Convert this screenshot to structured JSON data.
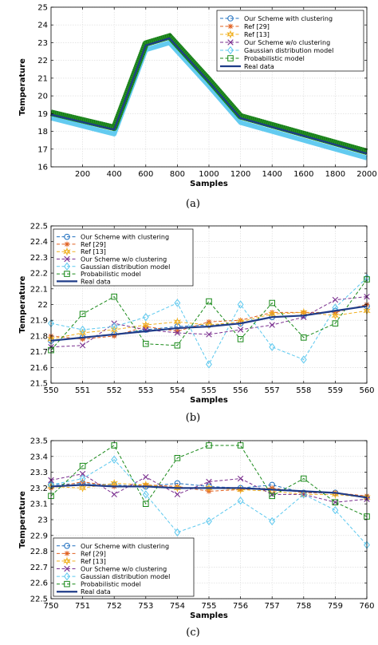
{
  "chart_data": [
    {
      "type": "line",
      "caption": "(a)",
      "xlabel": "Samples",
      "ylabel": "Temperature",
      "xlim": [
        0,
        2000
      ],
      "ylim": [
        16,
        25
      ],
      "xticks": [
        200,
        400,
        600,
        800,
        1000,
        1200,
        1400,
        1600,
        1800,
        2000
      ],
      "yticks": [
        16,
        17,
        18,
        19,
        20,
        21,
        22,
        23,
        24,
        25
      ],
      "grid": true,
      "legend_position": "top-right",
      "series": [
        {
          "name": "Our Scheme with clustering",
          "color": "#1f6fbf",
          "marker": "circle",
          "x": [
            0,
            400,
            600,
            750,
            1000,
            1200,
            2000
          ],
          "y": [
            18.95,
            18.1,
            22.85,
            23.25,
            20.8,
            18.75,
            16.75
          ]
        },
        {
          "name": "Ref [29]",
          "color": "#e06020",
          "marker": "star",
          "x": [
            0,
            400,
            600,
            750,
            1000,
            1200,
            2000
          ],
          "y": [
            18.95,
            18.1,
            22.85,
            23.25,
            20.8,
            18.75,
            16.75
          ]
        },
        {
          "name": "Ref [13]",
          "color": "#f0b020",
          "marker": "hexagram",
          "x": [
            0,
            400,
            600,
            750,
            1000,
            1200,
            2000
          ],
          "y": [
            18.95,
            18.1,
            22.85,
            23.25,
            20.8,
            18.75,
            16.75
          ]
        },
        {
          "name": "Our Scheme w/o clustering",
          "color": "#7a2f8f",
          "marker": "x",
          "x": [
            0,
            400,
            600,
            750,
            1000,
            1200,
            2000
          ],
          "y": [
            18.95,
            18.1,
            22.85,
            23.25,
            20.8,
            18.75,
            16.75
          ]
        },
        {
          "name": "Gaussian distribution model",
          "color": "#5bc8ef",
          "marker": "diamond",
          "x": [
            0,
            400,
            600,
            750,
            1000,
            1200,
            2000
          ],
          "y": [
            18.75,
            17.85,
            22.6,
            23.0,
            20.55,
            18.5,
            16.5
          ]
        },
        {
          "name": "Probabilistic model",
          "color": "#1a8a1a",
          "marker": "square",
          "x": [
            0,
            400,
            600,
            750,
            1000,
            1200,
            2000
          ],
          "y": [
            19.05,
            18.2,
            22.95,
            23.35,
            20.9,
            18.85,
            16.85
          ]
        },
        {
          "name": "Real data",
          "color": "#1f3c88",
          "marker": "none",
          "x": [
            0,
            400,
            600,
            750,
            1000,
            1200,
            2000
          ],
          "y": [
            18.95,
            18.1,
            22.85,
            23.25,
            20.8,
            18.75,
            16.75
          ]
        }
      ]
    },
    {
      "type": "line",
      "caption": "(b)",
      "xlabel": "Samples",
      "ylabel": "Temperature",
      "xlim": [
        550,
        560
      ],
      "ylim": [
        21.5,
        22.5
      ],
      "xticks": [
        550,
        551,
        552,
        553,
        554,
        555,
        556,
        557,
        558,
        559,
        560
      ],
      "yticks": [
        21.5,
        21.6,
        21.7,
        21.8,
        21.9,
        22,
        22.1,
        22.2,
        22.3,
        22.4,
        22.5
      ],
      "grid": true,
      "legend_position": "top-left",
      "x": [
        550,
        551,
        552,
        553,
        554,
        555,
        556,
        557,
        558,
        559,
        560
      ],
      "series": [
        {
          "name": "Our Scheme with clustering",
          "color": "#1f6fbf",
          "marker": "circle",
          "values": [
            21.77,
            21.79,
            21.81,
            21.84,
            21.86,
            21.87,
            21.88,
            21.92,
            21.93,
            21.96,
            21.99
          ]
        },
        {
          "name": "Ref [29]",
          "color": "#e06020",
          "marker": "star",
          "values": [
            21.8,
            21.78,
            21.8,
            21.86,
            21.83,
            21.89,
            21.9,
            21.95,
            21.95,
            21.95,
            22.0
          ]
        },
        {
          "name": "Ref [13]",
          "color": "#f0b020",
          "marker": "hexagram",
          "values": [
            21.78,
            21.82,
            21.84,
            21.87,
            21.89,
            21.87,
            21.89,
            21.94,
            21.95,
            21.93,
            21.96
          ]
        },
        {
          "name": "Our Scheme w/o clustering",
          "color": "#7a2f8f",
          "marker": "x",
          "values": [
            21.73,
            21.74,
            21.88,
            21.84,
            21.82,
            21.81,
            21.84,
            21.87,
            21.92,
            22.03,
            22.05
          ]
        },
        {
          "name": "Gaussian distribution model",
          "color": "#5bc8ef",
          "marker": "diamond",
          "values": [
            21.88,
            21.84,
            21.86,
            21.92,
            22.01,
            21.62,
            22.0,
            21.73,
            21.65,
            21.98,
            22.17
          ]
        },
        {
          "name": "Probabilistic model",
          "color": "#1a8a1a",
          "marker": "square",
          "values": [
            21.71,
            21.94,
            22.05,
            21.75,
            21.74,
            22.02,
            21.78,
            22.01,
            21.79,
            21.88,
            22.16
          ]
        },
        {
          "name": "Real data",
          "color": "#1f3c88",
          "marker": "none",
          "values": [
            21.77,
            21.79,
            21.81,
            21.83,
            21.85,
            21.86,
            21.88,
            21.92,
            21.93,
            21.96,
            21.99
          ]
        }
      ]
    },
    {
      "type": "line",
      "caption": "(c)",
      "xlabel": "Samples",
      "ylabel": "Temperature",
      "xlim": [
        750,
        760
      ],
      "ylim": [
        22.5,
        23.5
      ],
      "xticks": [
        750,
        751,
        752,
        753,
        754,
        755,
        756,
        757,
        758,
        759,
        760
      ],
      "yticks": [
        22.5,
        22.6,
        22.7,
        22.8,
        22.9,
        23,
        23.1,
        23.2,
        23.3,
        23.4,
        23.5
      ],
      "grid": true,
      "legend_position": "bottom-left",
      "x": [
        750,
        751,
        752,
        753,
        754,
        755,
        756,
        757,
        758,
        759,
        760
      ],
      "series": [
        {
          "name": "Our Scheme with clustering",
          "color": "#1f6fbf",
          "marker": "circle",
          "values": [
            23.22,
            23.23,
            23.22,
            23.21,
            23.23,
            23.21,
            23.2,
            23.22,
            23.17,
            23.17,
            23.14
          ]
        },
        {
          "name": "Ref [29]",
          "color": "#e06020",
          "marker": "star",
          "values": [
            23.2,
            23.24,
            23.21,
            23.22,
            23.21,
            23.18,
            23.19,
            23.2,
            23.17,
            23.17,
            23.15
          ]
        },
        {
          "name": "Ref [13]",
          "color": "#f0b020",
          "marker": "hexagram",
          "values": [
            23.21,
            23.2,
            23.23,
            23.22,
            23.2,
            23.2,
            23.19,
            23.18,
            23.16,
            23.16,
            23.14
          ]
        },
        {
          "name": "Our Scheme w/o clustering",
          "color": "#7a2f8f",
          "marker": "x",
          "values": [
            23.25,
            23.29,
            23.16,
            23.27,
            23.16,
            23.24,
            23.26,
            23.16,
            23.16,
            23.11,
            23.13
          ]
        },
        {
          "name": "Gaussian distribution model",
          "color": "#5bc8ef",
          "marker": "diamond",
          "values": [
            23.22,
            23.26,
            23.38,
            23.16,
            22.92,
            22.99,
            23.12,
            22.99,
            23.16,
            23.06,
            22.84
          ]
        },
        {
          "name": "Probabilistic model",
          "color": "#1a8a1a",
          "marker": "square",
          "values": [
            23.15,
            23.34,
            23.47,
            23.1,
            23.39,
            23.47,
            23.47,
            23.15,
            23.26,
            23.11,
            23.02
          ]
        },
        {
          "name": "Real data",
          "color": "#1f3c88",
          "marker": "none",
          "values": [
            23.21,
            23.22,
            23.21,
            23.21,
            23.2,
            23.2,
            23.2,
            23.19,
            23.18,
            23.17,
            23.14
          ]
        }
      ]
    }
  ]
}
